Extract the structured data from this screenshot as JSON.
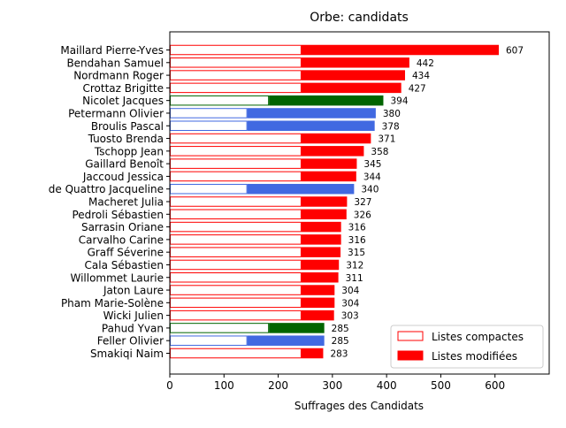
{
  "chart_data": {
    "type": "bar",
    "orientation": "horizontal",
    "title": "Orbe: candidats",
    "xlabel": "Suffrages des Candidats",
    "ylabel": "",
    "xlim": [
      0,
      700
    ],
    "xticks": [
      0,
      100,
      200,
      300,
      400,
      500,
      600
    ],
    "grid": false,
    "legend_position": "lower-right",
    "legend": [
      {
        "label": "Listes compactes",
        "style": "outline",
        "color": "#ff0000"
      },
      {
        "label": "Listes modifiées",
        "style": "filled",
        "color": "#ff0000"
      }
    ],
    "party_colors": {
      "red": "#ff0000",
      "green": "#006400",
      "blue": "#4169e1"
    },
    "candidates": [
      {
        "name": "Maillard Pierre-Yves",
        "total": 607,
        "compact": 243,
        "party": "red"
      },
      {
        "name": "Bendahan Samuel",
        "total": 442,
        "compact": 243,
        "party": "red"
      },
      {
        "name": "Nordmann Roger",
        "total": 434,
        "compact": 243,
        "party": "red"
      },
      {
        "name": "Crottaz Brigitte",
        "total": 427,
        "compact": 243,
        "party": "red"
      },
      {
        "name": "Nicolet Jacques",
        "total": 394,
        "compact": 183,
        "party": "green"
      },
      {
        "name": "Petermann Olivier",
        "total": 380,
        "compact": 143,
        "party": "blue"
      },
      {
        "name": "Broulis Pascal",
        "total": 378,
        "compact": 143,
        "party": "blue"
      },
      {
        "name": "Tuosto Brenda",
        "total": 371,
        "compact": 243,
        "party": "red"
      },
      {
        "name": "Tschopp Jean",
        "total": 358,
        "compact": 243,
        "party": "red"
      },
      {
        "name": "Gaillard Benoît",
        "total": 345,
        "compact": 243,
        "party": "red"
      },
      {
        "name": "Jaccoud Jessica",
        "total": 344,
        "compact": 243,
        "party": "red"
      },
      {
        "name": "de Quattro Jacqueline",
        "total": 340,
        "compact": 143,
        "party": "blue"
      },
      {
        "name": "Macheret Julia",
        "total": 327,
        "compact": 243,
        "party": "red"
      },
      {
        "name": "Pedroli Sébastien",
        "total": 326,
        "compact": 243,
        "party": "red"
      },
      {
        "name": "Sarrasin Oriane",
        "total": 316,
        "compact": 243,
        "party": "red"
      },
      {
        "name": "Carvalho Carine",
        "total": 316,
        "compact": 243,
        "party": "red"
      },
      {
        "name": "Graff Séverine",
        "total": 315,
        "compact": 243,
        "party": "red"
      },
      {
        "name": "Cala Sébastien",
        "total": 312,
        "compact": 243,
        "party": "red"
      },
      {
        "name": "Willommet Laurie",
        "total": 311,
        "compact": 243,
        "party": "red"
      },
      {
        "name": "Jaton Laure",
        "total": 304,
        "compact": 243,
        "party": "red"
      },
      {
        "name": "Pham Marie-Solène",
        "total": 304,
        "compact": 243,
        "party": "red"
      },
      {
        "name": "Wicki Julien",
        "total": 303,
        "compact": 243,
        "party": "red"
      },
      {
        "name": "Pahud Yvan",
        "total": 285,
        "compact": 183,
        "party": "green"
      },
      {
        "name": "Feller Olivier",
        "total": 285,
        "compact": 143,
        "party": "blue"
      },
      {
        "name": "Smakiqi Naim",
        "total": 283,
        "compact": 243,
        "party": "red"
      }
    ]
  }
}
